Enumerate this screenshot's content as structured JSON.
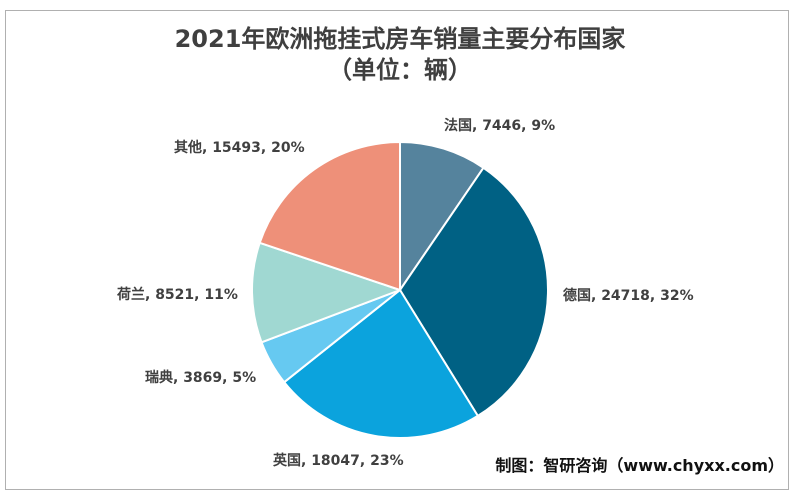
{
  "title": {
    "line1": "2021年欧洲拖挂式房车销量主要分布国家",
    "line2": "（单位：辆）"
  },
  "credit": "制图：智研咨询（www.chyxx.com）",
  "chart_data": {
    "type": "pie",
    "title": "2021年欧洲拖挂式房车销量主要分布国家（单位：辆）",
    "unit": "辆",
    "categories": [
      "法国",
      "德国",
      "英国",
      "瑞典",
      "荷兰",
      "其他"
    ],
    "values": [
      7446,
      24718,
      18047,
      3869,
      8521,
      15493
    ],
    "percents": [
      "9%",
      "32%",
      "23%",
      "5%",
      "11%",
      "20%"
    ],
    "labels": [
      "法国, 7446, 9%",
      "德国, 24718, 32%",
      "英国, 18047, 23%",
      "瑞典, 3869, 5%",
      "荷兰, 8521, 11%",
      "其他, 15493, 20%"
    ],
    "colors": [
      "#55839d",
      "#006184",
      "#0ba3dd",
      "#66c9f1",
      "#a0d8d2",
      "#ee9079"
    ],
    "start_angle_deg": 0,
    "direction": "clockwise",
    "legend": "none",
    "label_format": "category, value, percent",
    "slice_border_color": "#ffffff"
  }
}
